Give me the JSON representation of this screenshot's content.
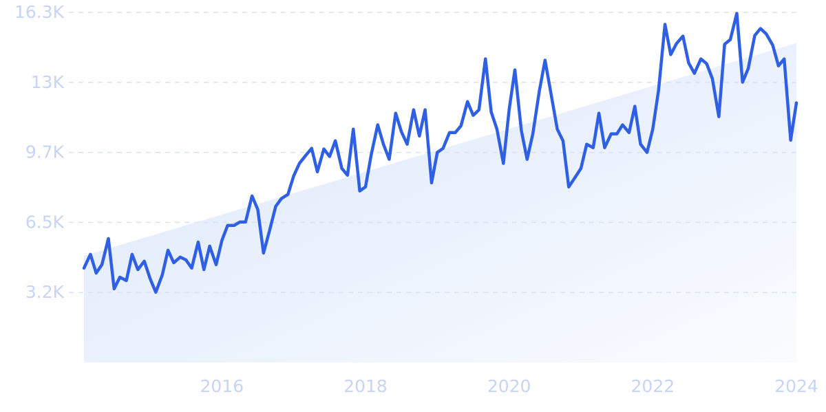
{
  "chart_data": {
    "type": "line",
    "color": "#2f5fe3",
    "trend_color": "#dbe7fb",
    "grid": true,
    "xlim": [
      2014.08,
      2024
    ],
    "xticks": [
      2016,
      2018,
      2020,
      2022,
      2024
    ],
    "ylim": [
      0,
      16250
    ],
    "yticks": [
      {
        "value": 3250,
        "label": "3.2K"
      },
      {
        "value": 6500,
        "label": "6.5K"
      },
      {
        "value": 9750,
        "label": "9.7K"
      },
      {
        "value": 13000,
        "label": "13K"
      },
      {
        "value": 16250,
        "label": "16.3K"
      }
    ],
    "trend_x": [
      2014.08,
      2024
    ],
    "trend_values": [
      4950,
      14830
    ],
    "x": [
      2014.08,
      2014.17,
      2014.25,
      2014.33,
      2014.42,
      2014.5,
      2014.58,
      2014.67,
      2014.75,
      2014.83,
      2014.92,
      2015,
      2015.08,
      2015.17,
      2015.25,
      2015.33,
      2015.42,
      2015.5,
      2015.58,
      2015.67,
      2015.75,
      2015.83,
      2015.92,
      2016,
      2016.08,
      2016.17,
      2016.25,
      2016.33,
      2016.42,
      2016.5,
      2016.58,
      2016.67,
      2016.75,
      2016.83,
      2016.92,
      2017,
      2017.08,
      2017.17,
      2017.25,
      2017.33,
      2017.42,
      2017.5,
      2017.58,
      2017.67,
      2017.75,
      2017.83,
      2017.92,
      2018,
      2018.08,
      2018.17,
      2018.25,
      2018.33,
      2018.42,
      2018.5,
      2018.58,
      2018.67,
      2018.75,
      2018.83,
      2018.92,
      2019,
      2019.08,
      2019.17,
      2019.25,
      2019.33,
      2019.42,
      2019.5,
      2019.58,
      2019.67,
      2019.75,
      2019.83,
      2019.92,
      2020,
      2020.08,
      2020.17,
      2020.25,
      2020.33,
      2020.42,
      2020.5,
      2020.58,
      2020.67,
      2020.75,
      2020.83,
      2020.92,
      2021,
      2021.08,
      2021.17,
      2021.25,
      2021.33,
      2021.42,
      2021.5,
      2021.58,
      2021.67,
      2021.75,
      2021.83,
      2021.92,
      2022,
      2022.08,
      2022.17,
      2022.25,
      2022.33,
      2022.42,
      2022.5,
      2022.58,
      2022.67,
      2022.75,
      2022.83,
      2022.92,
      2023,
      2023.08,
      2023.17,
      2023.25,
      2023.33,
      2023.42,
      2023.5,
      2023.58,
      2023.67,
      2023.75,
      2023.83,
      2023.92,
      2024
    ],
    "values": [
      4380,
      5020,
      4150,
      4540,
      5750,
      3420,
      3960,
      3800,
      5020,
      4310,
      4700,
      3900,
      3260,
      4060,
      5210,
      4630,
      4890,
      4760,
      4380,
      5590,
      4310,
      5400,
      4540,
      5660,
      6360,
      6360,
      6520,
      6520,
      7730,
      7100,
      5080,
      6200,
      7250,
      7610,
      7800,
      8660,
      9240,
      9620,
      9940,
      8850,
      9910,
      9560,
      10290,
      9010,
      8690,
      10830,
      7960,
      8150,
      9650,
      11030,
      10130,
      9430,
      11570,
      10710,
      10130,
      11730,
      10510,
      11730,
      8340,
      9750,
      9940,
      10670,
      10670,
      10990,
      12110,
      11470,
      11730,
      14090,
      11630,
      10830,
      9240,
      11730,
      13580,
      10770,
      9430,
      10610,
      12590,
      14030,
      12530,
      10830,
      10290,
      8150,
      8600,
      9010,
      10130,
      9970,
      11570,
      9970,
      10610,
      10610,
      11030,
      10670,
      11890,
      10130,
      9750,
      10830,
      12620,
      15690,
      14290,
      14800,
      15150,
      13900,
      13420,
      14090,
      13870,
      13170,
      11410,
      14770,
      14990,
      16200,
      13010,
      13650,
      15180,
      15500,
      15250,
      14730,
      13770,
      14090,
      10320,
      12050
    ]
  }
}
